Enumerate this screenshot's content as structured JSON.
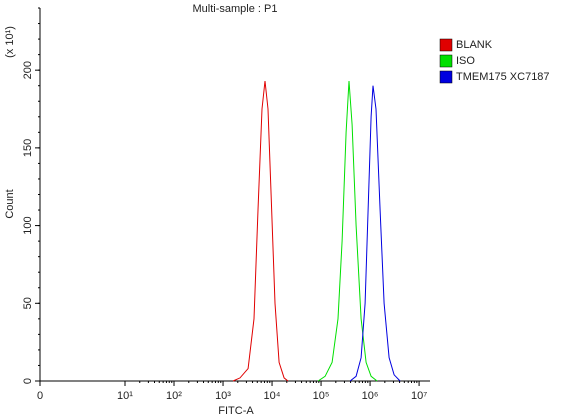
{
  "chart_data": {
    "type": "histogram-overlay",
    "title": "Multi-sample : P1",
    "x_label": "FITC-A",
    "y_label": "Count",
    "y_multiplier": "(x 10¹)",
    "xscale": "biexponential",
    "xlim": [
      0,
      16700000
    ],
    "xticks": [
      0,
      {
        "value": 10,
        "label": "10¹"
      },
      {
        "value": 100,
        "label": "10²"
      },
      {
        "value": 1000,
        "label": "10³"
      },
      {
        "value": 10000,
        "label": "10⁴"
      },
      {
        "value": 100000,
        "label": "10⁵"
      },
      {
        "value": 1000000,
        "label": "10⁶"
      },
      {
        "value": 10000000,
        "label": "10⁷"
      }
    ],
    "ylim": [
      0,
      240
    ],
    "yticks": [
      0,
      50,
      100,
      150,
      200
    ],
    "series": [
      {
        "name": "BLANK",
        "color": "#e00000",
        "x": [
          1600,
          2220,
          3240,
          4290,
          5180,
          6250,
          7200,
          8280,
          9550,
          11500,
          13900,
          17600,
          21200
        ],
        "values": [
          0,
          2,
          8,
          40,
          110,
          175,
          193,
          175,
          120,
          50,
          12,
          2,
          0
        ]
      },
      {
        "name": "ISO",
        "color": "#00e000",
        "x": [
          86900,
          121000,
          168000,
          222000,
          269000,
          324000,
          372000,
          430000,
          518000,
          655000,
          828000,
          1050000,
          1390000
        ],
        "values": [
          0,
          3,
          12,
          40,
          90,
          160,
          193,
          165,
          100,
          40,
          12,
          3,
          0
        ]
      },
      {
        "name": "TMEM175 XC7187",
        "color": "#0000e0",
        "x": [
          391000,
          518000,
          655000,
          791000,
          910000,
          1050000,
          1150000,
          1320000,
          1600000,
          1930000,
          2440000,
          3090000,
          4090000
        ],
        "values": [
          0,
          3,
          15,
          50,
          110,
          170,
          190,
          175,
          110,
          50,
          15,
          4,
          0
        ]
      }
    ]
  }
}
